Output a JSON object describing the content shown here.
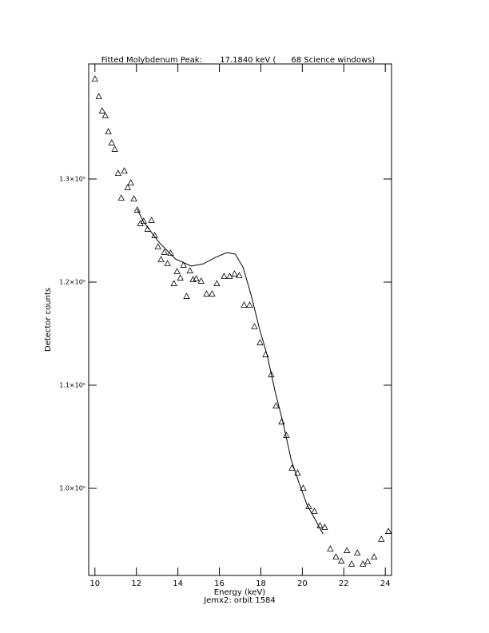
{
  "chart_data": {
    "type": "scatter",
    "title": "Fitted Molybdenum Peak:       17.1840 keV (      68 Science windows)",
    "x_label": "Energy (keV)",
    "y_label": "Detector counts",
    "subtitle": "Jemx2: orbit 1584",
    "xlim": [
      9.7,
      24.3
    ],
    "ylim": [
      91550,
      141160
    ],
    "xticks": [
      10,
      12,
      14,
      16,
      18,
      20,
      22,
      24
    ],
    "yticks": [
      {
        "value": 100000,
        "label": "1.0×10⁵"
      },
      {
        "value": 110000,
        "label": "1.1×10⁵"
      },
      {
        "value": 120000,
        "label": "1.2×10⁵"
      },
      {
        "value": 130000,
        "label": "1.3×10⁵"
      }
    ],
    "series": [
      {
        "type": "scatter",
        "color": "#000000",
        "x": [
          10.0,
          10.19,
          10.35,
          10.5,
          10.65,
          10.81,
          10.96,
          11.12,
          11.27,
          11.42,
          11.58,
          11.73,
          11.88,
          12.04,
          12.19,
          12.35,
          12.54,
          12.73,
          12.88,
          13.04,
          13.19,
          13.35,
          13.5,
          13.65,
          13.81,
          13.96,
          14.12,
          14.27,
          14.42,
          14.58,
          14.73,
          14.88,
          15.12,
          15.38,
          15.65,
          15.88,
          16.23,
          16.5,
          16.73,
          16.96,
          17.19,
          17.46,
          17.69,
          17.96,
          18.23,
          18.5,
          18.73,
          19.0,
          19.23,
          19.5,
          19.77,
          20.04,
          20.31,
          20.58,
          20.85,
          21.08,
          21.35,
          21.62,
          21.88,
          22.15,
          22.38,
          22.65,
          22.92,
          23.15,
          23.46,
          23.81,
          24.15
        ],
        "values": [
          139690,
          137980,
          136590,
          136120,
          134570,
          133490,
          132870,
          130540,
          128140,
          130780,
          129150,
          129610,
          128060,
          126980,
          125660,
          125890,
          125120,
          125970,
          124500,
          123410,
          122170,
          122870,
          121780,
          122790,
          119840,
          121010,
          120390,
          121630,
          118600,
          121080,
          120230,
          120310,
          120080,
          118840,
          118840,
          119840,
          120540,
          120540,
          120780,
          120620,
          117750,
          117750,
          115660,
          114110,
          112950,
          111010,
          107980,
          106430,
          105120,
          101940,
          101470,
          100000,
          98220,
          97750,
          96360,
          96200,
          94110,
          93330,
          92940,
          93950,
          92640,
          93720,
          92640,
          92870,
          93330,
          95040,
          95810
        ]
      },
      {
        "type": "line",
        "color": "#000000",
        "x": [
          12.04,
          12.35,
          13.12,
          13.88,
          14.65,
          15.23,
          15.81,
          16.38,
          16.77,
          17.15,
          17.54,
          17.92,
          18.31,
          18.69,
          19.08,
          19.46,
          19.85,
          20.23,
          20.62,
          21.0
        ],
        "values": [
          127060,
          125810,
          123800,
          122250,
          121550,
          121780,
          122400,
          122870,
          122710,
          121400,
          118680,
          115580,
          112870,
          109380,
          106280,
          102790,
          100470,
          98380,
          96980,
          95560
        ]
      }
    ]
  }
}
